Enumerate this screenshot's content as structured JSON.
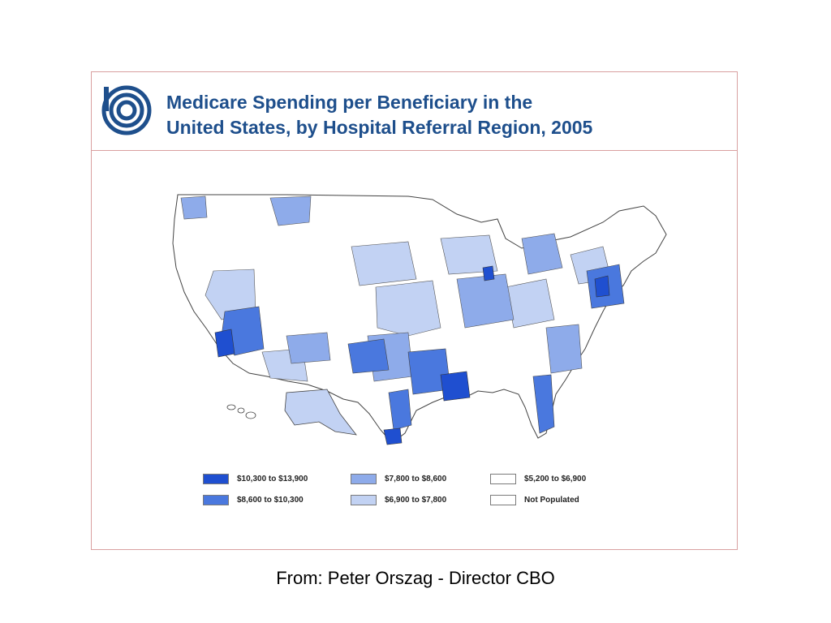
{
  "title": {
    "line1": "Medicare Spending per Beneficiary in the",
    "line2": "United States, by Hospital Referral Region, 2005"
  },
  "logo": {
    "name": "cbo-logo-icon",
    "color": "#1e4f8c"
  },
  "legend": [
    {
      "label": "$10,300 to $13,900",
      "color": "#1f4fd0"
    },
    {
      "label": "$8,600 to $10,300",
      "color": "#4a78de"
    },
    {
      "label": "$7,800 to $8,600",
      "color": "#8eabea"
    },
    {
      "label": "$6,900 to $7,800",
      "color": "#c2d2f3"
    },
    {
      "label": "$5,200 to $6,900",
      "color": "#ffffff"
    },
    {
      "label": "Not Populated",
      "color": "#ffffff"
    }
  ],
  "caption": "From: Peter Orszag - Director CBO"
}
